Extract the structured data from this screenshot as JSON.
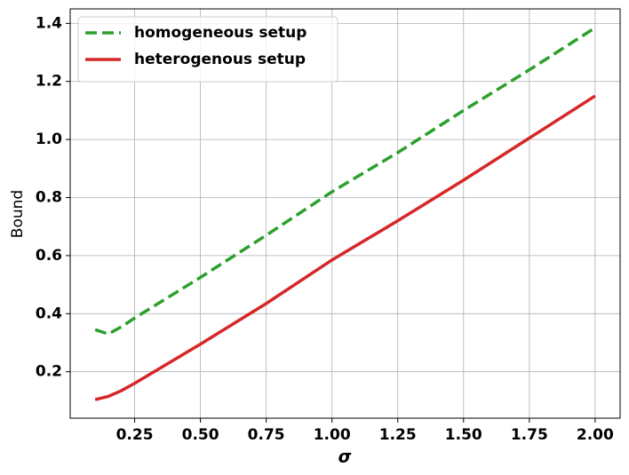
{
  "chart_data": {
    "type": "line",
    "x_label": "σ",
    "y_label": "Bound",
    "x": [
      0.1,
      0.15,
      0.2,
      0.25,
      0.5,
      0.75,
      1.0,
      1.25,
      1.5,
      1.75,
      2.0
    ],
    "series": [
      {
        "name": "homogeneous setup",
        "color": "#2ca02c",
        "dashed": true,
        "values": [
          0.345,
          0.33,
          0.355,
          0.385,
          0.525,
          0.67,
          0.82,
          0.955,
          1.1,
          1.24,
          1.385
        ]
      },
      {
        "name": "heterogenous setup",
        "color": "#d62728",
        "dashed": false,
        "values": [
          0.104,
          0.115,
          0.135,
          0.16,
          0.295,
          0.435,
          0.585,
          0.72,
          0.86,
          1.005,
          1.15
        ]
      }
    ],
    "xlim": [
      0.005,
      2.095
    ],
    "ylim": [
      0.04,
      1.45
    ],
    "xticks": [
      {
        "value": 0.25,
        "label": "0.25"
      },
      {
        "value": 0.5,
        "label": "0.50"
      },
      {
        "value": 0.75,
        "label": "0.75"
      },
      {
        "value": 1.0,
        "label": "1.00"
      },
      {
        "value": 1.25,
        "label": "1.25"
      },
      {
        "value": 1.5,
        "label": "1.50"
      },
      {
        "value": 1.75,
        "label": "1.75"
      },
      {
        "value": 2.0,
        "label": "2.00"
      }
    ],
    "yticks": [
      0.2,
      0.4,
      0.6,
      0.8,
      {
        "value": 1.0,
        "label": "1.0"
      },
      1.2,
      1.4
    ],
    "grid": true,
    "legend": "upper-left"
  }
}
